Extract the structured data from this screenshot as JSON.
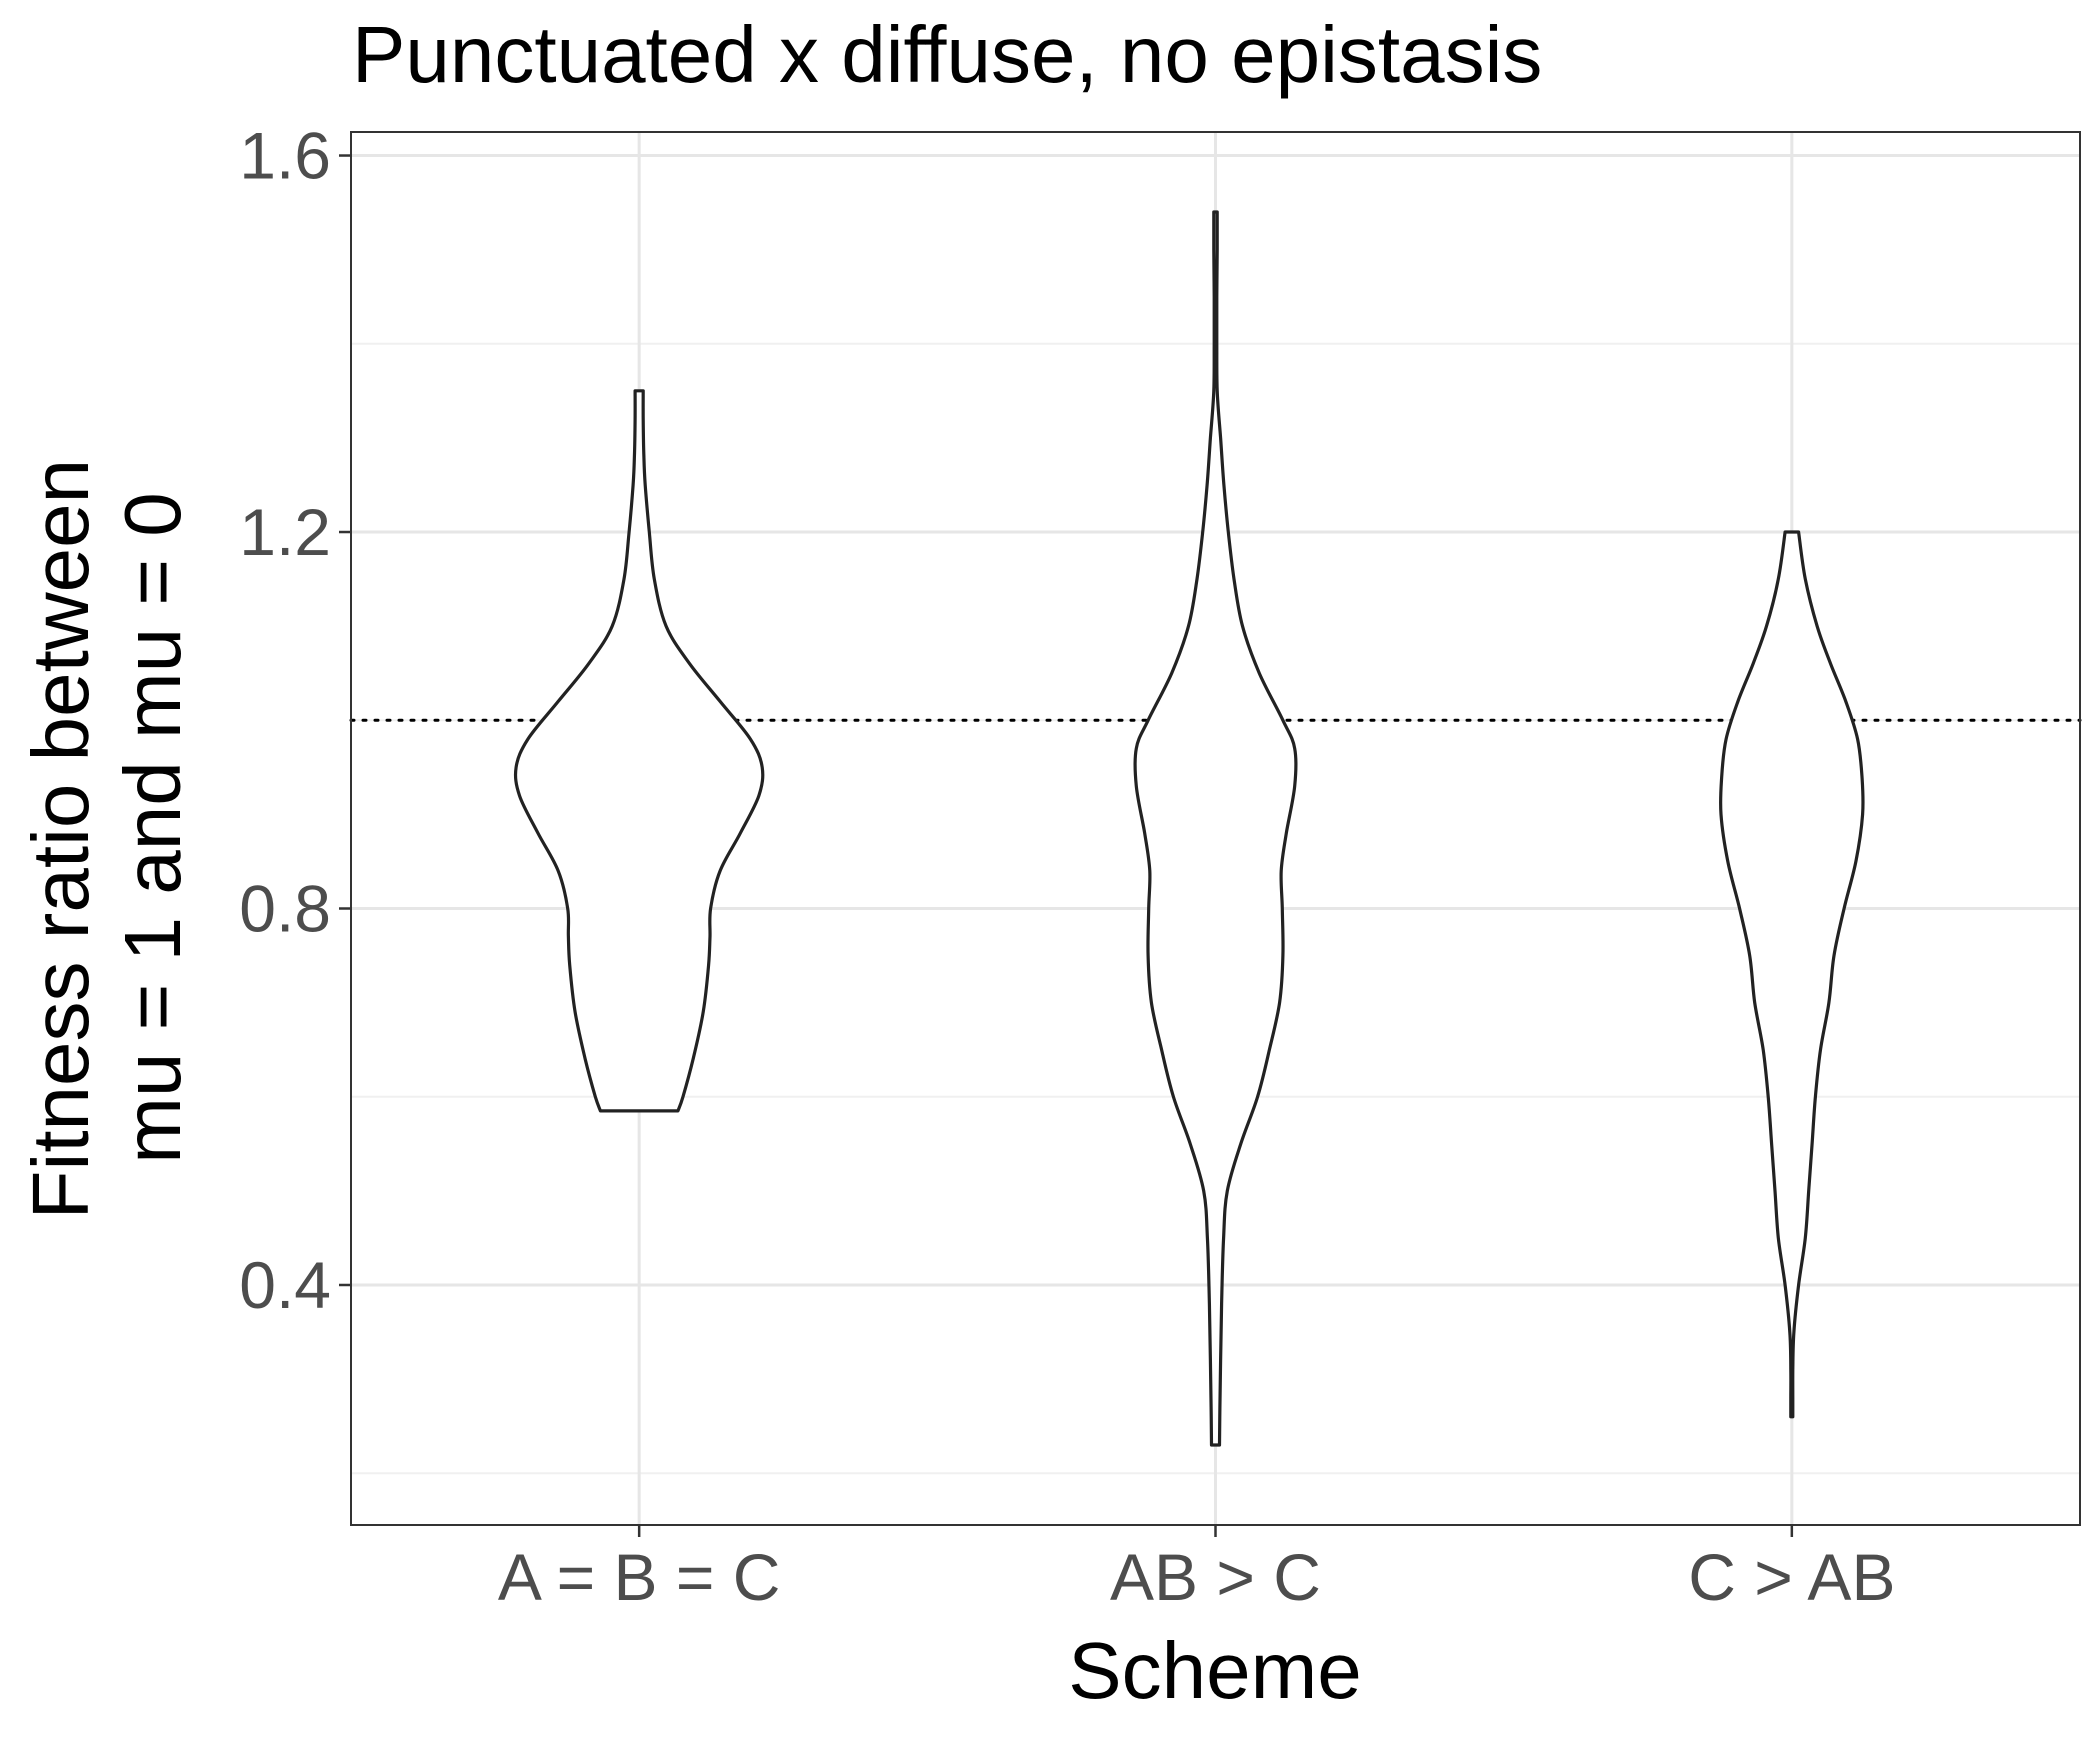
{
  "chart_data": {
    "type": "violin",
    "title": "Punctuated x diffuse, no epistasis",
    "xlabel": "Scheme",
    "ylabel_lines": [
      "Fitness ratio between",
      "mu = 1 and mu = 0"
    ],
    "categories": [
      "A = B = C",
      "AB > C",
      "C > AB"
    ],
    "y_ticks": [
      "0.4",
      "0.8",
      "1.2",
      "1.6"
    ],
    "y_tick_values": [
      0.4,
      0.8,
      1.2,
      1.6
    ],
    "ylim": [
      0.145,
      1.625
    ],
    "reference_line": 1.0,
    "reference_line_style": "dotted",
    "grid": true,
    "theme": "bw",
    "colors": {
      "violin_stroke": "#222222",
      "violin_fill": "#ffffff",
      "grid_major": "#e6e6e6",
      "grid_minor": "#f0f0f0",
      "panel_border": "#333333",
      "tick_label": "#4d4d4d"
    },
    "series": [
      {
        "category": "A = B = C",
        "y_range": [
          0.585,
          1.35
        ],
        "density_profile": [
          [
            0.585,
            0.115
          ],
          [
            0.6,
            0.13
          ],
          [
            0.64,
            0.16
          ],
          [
            0.69,
            0.19
          ],
          [
            0.74,
            0.206
          ],
          [
            0.77,
            0.21
          ],
          [
            0.8,
            0.212
          ],
          [
            0.84,
            0.24
          ],
          [
            0.88,
            0.3
          ],
          [
            0.92,
            0.355
          ],
          [
            0.95,
            0.365
          ],
          [
            0.98,
            0.33
          ],
          [
            1.02,
            0.24
          ],
          [
            1.06,
            0.15
          ],
          [
            1.1,
            0.08
          ],
          [
            1.15,
            0.045
          ],
          [
            1.2,
            0.03
          ],
          [
            1.25,
            0.018
          ],
          [
            1.28,
            0.014
          ],
          [
            1.32,
            0.012
          ],
          [
            1.35,
            0.012
          ]
        ]
      },
      {
        "category": "AB > C",
        "y_range": [
          0.23,
          1.54
        ],
        "density_profile": [
          [
            0.23,
            0.012
          ],
          [
            0.27,
            0.013
          ],
          [
            0.32,
            0.015
          ],
          [
            0.38,
            0.018
          ],
          [
            0.45,
            0.024
          ],
          [
            0.5,
            0.035
          ],
          [
            0.55,
            0.075
          ],
          [
            0.6,
            0.125
          ],
          [
            0.65,
            0.16
          ],
          [
            0.7,
            0.19
          ],
          [
            0.75,
            0.2
          ],
          [
            0.8,
            0.198
          ],
          [
            0.84,
            0.195
          ],
          [
            0.88,
            0.21
          ],
          [
            0.93,
            0.235
          ],
          [
            0.97,
            0.235
          ],
          [
            1.0,
            0.2
          ],
          [
            1.05,
            0.13
          ],
          [
            1.1,
            0.08
          ],
          [
            1.15,
            0.055
          ],
          [
            1.2,
            0.038
          ],
          [
            1.25,
            0.025
          ],
          [
            1.3,
            0.015
          ],
          [
            1.35,
            0.005
          ],
          [
            1.4,
            0.004
          ],
          [
            1.45,
            0.004
          ],
          [
            1.5,
            0.005
          ],
          [
            1.54,
            0.005
          ]
        ]
      },
      {
        "category": "C > AB",
        "y_range": [
          0.26,
          1.2
        ],
        "density_profile": [
          [
            0.26,
            0.003
          ],
          [
            0.28,
            0.003
          ],
          [
            0.31,
            0.003
          ],
          [
            0.35,
            0.006
          ],
          [
            0.4,
            0.02
          ],
          [
            0.45,
            0.04
          ],
          [
            0.5,
            0.05
          ],
          [
            0.55,
            0.06
          ],
          [
            0.6,
            0.07
          ],
          [
            0.65,
            0.085
          ],
          [
            0.7,
            0.11
          ],
          [
            0.75,
            0.125
          ],
          [
            0.8,
            0.155
          ],
          [
            0.85,
            0.19
          ],
          [
            0.9,
            0.21
          ],
          [
            0.94,
            0.208
          ],
          [
            0.98,
            0.195
          ],
          [
            1.02,
            0.16
          ],
          [
            1.06,
            0.115
          ],
          [
            1.1,
            0.075
          ],
          [
            1.15,
            0.04
          ],
          [
            1.2,
            0.02
          ]
        ]
      }
    ]
  }
}
